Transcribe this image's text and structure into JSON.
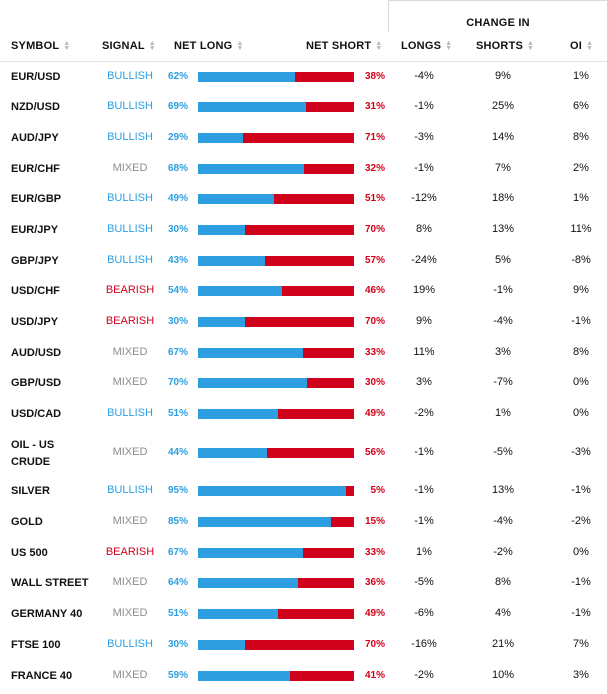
{
  "header": {
    "change_in": "CHANGE IN",
    "symbol": "SYMBOL",
    "signal": "SIGNAL",
    "net_long": "NET LONG",
    "net_short": "NET SHORT",
    "longs": "LONGS",
    "shorts": "SHORTS",
    "oi": "OI"
  },
  "colors": {
    "bullish": "#2d9fe0",
    "bearish": "#d0021b",
    "mixed": "#8c8c8c",
    "long_bar": "#2d9fe0",
    "short_bar": "#d0021b"
  },
  "rows": [
    {
      "symbol": "EUR/USD",
      "signal": "BULLISH",
      "net_long": "62%",
      "long_value": 62,
      "net_short": "38%",
      "longs": "-4%",
      "shorts": "9%",
      "oi": "1%"
    },
    {
      "symbol": "NZD/USD",
      "signal": "BULLISH",
      "net_long": "69%",
      "long_value": 69,
      "net_short": "31%",
      "longs": "-1%",
      "shorts": "25%",
      "oi": "6%"
    },
    {
      "symbol": "AUD/JPY",
      "signal": "BULLISH",
      "net_long": "29%",
      "long_value": 29,
      "net_short": "71%",
      "longs": "-3%",
      "shorts": "14%",
      "oi": "8%"
    },
    {
      "symbol": "EUR/CHF",
      "signal": "MIXED",
      "net_long": "68%",
      "long_value": 68,
      "net_short": "32%",
      "longs": "-1%",
      "shorts": "7%",
      "oi": "2%"
    },
    {
      "symbol": "EUR/GBP",
      "signal": "BULLISH",
      "net_long": "49%",
      "long_value": 49,
      "net_short": "51%",
      "longs": "-12%",
      "shorts": "18%",
      "oi": "1%"
    },
    {
      "symbol": "EUR/JPY",
      "signal": "BULLISH",
      "net_long": "30%",
      "long_value": 30,
      "net_short": "70%",
      "longs": "8%",
      "shorts": "13%",
      "oi": "11%"
    },
    {
      "symbol": "GBP/JPY",
      "signal": "BULLISH",
      "net_long": "43%",
      "long_value": 43,
      "net_short": "57%",
      "longs": "-24%",
      "shorts": "5%",
      "oi": "-8%"
    },
    {
      "symbol": "USD/CHF",
      "signal": "BEARISH",
      "net_long": "54%",
      "long_value": 54,
      "net_short": "46%",
      "longs": "19%",
      "shorts": "-1%",
      "oi": "9%"
    },
    {
      "symbol": "USD/JPY",
      "signal": "BEARISH",
      "net_long": "30%",
      "long_value": 30,
      "net_short": "70%",
      "longs": "9%",
      "shorts": "-4%",
      "oi": "-1%"
    },
    {
      "symbol": "AUD/USD",
      "signal": "MIXED",
      "net_long": "67%",
      "long_value": 67,
      "net_short": "33%",
      "longs": "11%",
      "shorts": "3%",
      "oi": "8%"
    },
    {
      "symbol": "GBP/USD",
      "signal": "MIXED",
      "net_long": "70%",
      "long_value": 70,
      "net_short": "30%",
      "longs": "3%",
      "shorts": "-7%",
      "oi": "0%"
    },
    {
      "symbol": "USD/CAD",
      "signal": "BULLISH",
      "net_long": "51%",
      "long_value": 51,
      "net_short": "49%",
      "longs": "-2%",
      "shorts": "1%",
      "oi": "0%"
    },
    {
      "symbol": "OIL - US CRUDE",
      "signal": "MIXED",
      "net_long": "44%",
      "long_value": 44,
      "net_short": "56%",
      "longs": "-1%",
      "shorts": "-5%",
      "oi": "-3%"
    },
    {
      "symbol": "SILVER",
      "signal": "BULLISH",
      "net_long": "95%",
      "long_value": 95,
      "net_short": "5%",
      "longs": "-1%",
      "shorts": "13%",
      "oi": "-1%"
    },
    {
      "symbol": "GOLD",
      "signal": "MIXED",
      "net_long": "85%",
      "long_value": 85,
      "net_short": "15%",
      "longs": "-1%",
      "shorts": "-4%",
      "oi": "-2%"
    },
    {
      "symbol": "US 500",
      "signal": "BEARISH",
      "net_long": "67%",
      "long_value": 67,
      "net_short": "33%",
      "longs": "1%",
      "shorts": "-2%",
      "oi": "0%"
    },
    {
      "symbol": "WALL STREET",
      "signal": "MIXED",
      "net_long": "64%",
      "long_value": 64,
      "net_short": "36%",
      "longs": "-5%",
      "shorts": "8%",
      "oi": "-1%"
    },
    {
      "symbol": "GERMANY 40",
      "signal": "MIXED",
      "net_long": "51%",
      "long_value": 51,
      "net_short": "49%",
      "longs": "-6%",
      "shorts": "4%",
      "oi": "-1%"
    },
    {
      "symbol": "FTSE 100",
      "signal": "BULLISH",
      "net_long": "30%",
      "long_value": 30,
      "net_short": "70%",
      "longs": "-16%",
      "shorts": "21%",
      "oi": "7%"
    },
    {
      "symbol": "FRANCE 40",
      "signal": "MIXED",
      "net_long": "59%",
      "long_value": 59,
      "net_short": "41%",
      "longs": "-2%",
      "shorts": "10%",
      "oi": "3%"
    }
  ]
}
